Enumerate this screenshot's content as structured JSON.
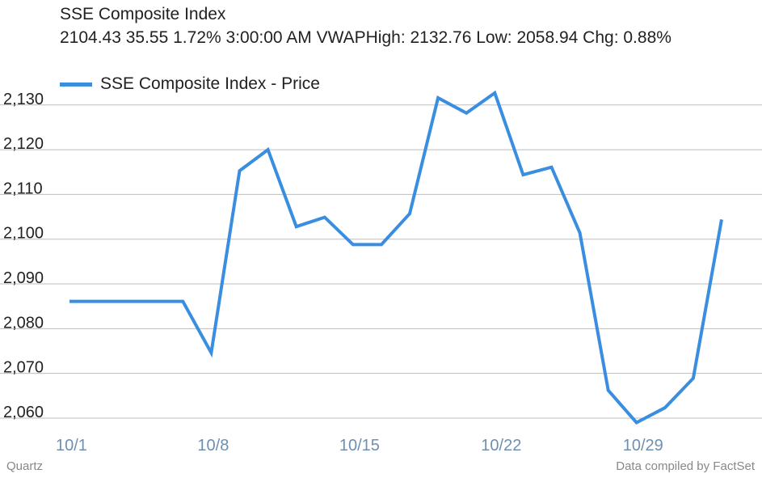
{
  "header": {
    "title": "SSE Composite Index",
    "stats": "2104.43 35.55 1.72% 3:00:00 AM VWAPHigh: 2132.76 Low: 2058.94 Chg: 0.88%"
  },
  "footer": {
    "source_left": "Quartz",
    "source_right": "Data compiled by FactSet"
  },
  "colors": {
    "line": "#3a8ee0",
    "grid": "#bdbdbd",
    "x_tick_text": "#6f8fb0",
    "y_tick_text": "#222222"
  },
  "chart_data": {
    "type": "line",
    "title": "SSE Composite Index",
    "legend_position": "top-left",
    "grid": true,
    "x_ticks": [
      "10/1",
      "10/8",
      "10/15",
      "10/22",
      "10/29"
    ],
    "x_tick_index": [
      0,
      5,
      10,
      15,
      20
    ],
    "y_ticks": [
      "2,060",
      "2,070",
      "2,080",
      "2,090",
      "2,100",
      "2,110",
      "2,120",
      "2,130"
    ],
    "ylim": [
      2058,
      2132
    ],
    "series": [
      {
        "name": "SSE Composite Index - Price",
        "values": [
          2086.1,
          2086.1,
          2086.1,
          2086.1,
          2086.1,
          2074.6,
          2115.3,
          2120.0,
          2102.8,
          2104.9,
          2098.8,
          2098.8,
          2105.7,
          2131.6,
          2128.2,
          2132.7,
          2114.4,
          2116.1,
          2101.4,
          2066.2,
          2059.0,
          2062.3,
          2068.9,
          2104.4
        ]
      }
    ]
  }
}
